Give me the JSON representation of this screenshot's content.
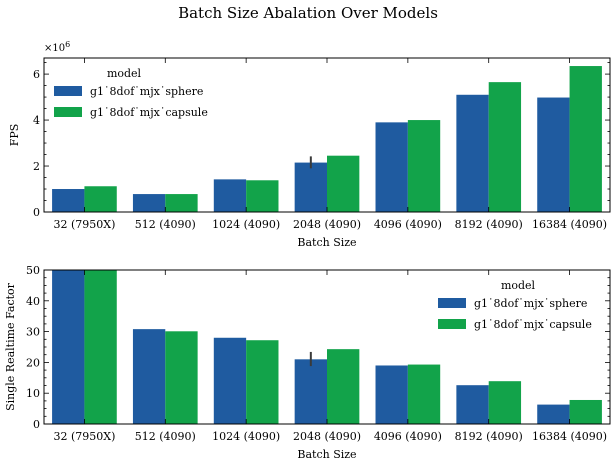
{
  "figure": {
    "title": "Batch Size Abalation Over Models"
  },
  "colors": {
    "sphere": "#1f5ba0",
    "capsule": "#12a34a",
    "errorbar": "#3a3a3a"
  },
  "chart_data": [
    {
      "type": "bar",
      "categories": [
        "32 (7950X)",
        "512 (4090)",
        "1024 (4090)",
        "2048 (4090)",
        "4096 (4090)",
        "8192 (4090)",
        "16384 (4090)"
      ],
      "series": [
        {
          "name": "g1˙8dof˙mjx˙sphere",
          "values": [
            1.0,
            0.78,
            1.42,
            2.15,
            3.9,
            5.1,
            4.98
          ]
        },
        {
          "name": "g1˙8dof˙mjx˙capsule",
          "values": [
            1.12,
            0.78,
            1.38,
            2.45,
            4.0,
            5.65,
            6.35
          ]
        }
      ],
      "error": [
        {
          "series": 0,
          "category": 3,
          "low": 1.9,
          "high": 2.42
        }
      ],
      "xlabel": "Batch Size",
      "ylabel": "FPS",
      "ylim": [
        0,
        6.7
      ],
      "yticks": [
        0,
        2,
        4,
        6
      ],
      "ytick_labels": [
        "0",
        "2",
        "4",
        "6"
      ],
      "multiplier": "×10",
      "multiplier_exp": "6",
      "legend_title": "model",
      "legend_position": "upper-left"
    },
    {
      "type": "bar",
      "categories": [
        "32 (7950X)",
        "512 (4090)",
        "1024 (4090)",
        "2048 (4090)",
        "4096 (4090)",
        "8192 (4090)",
        "16384 (4090)"
      ],
      "series": [
        {
          "name": "g1˙8dof˙mjx˙sphere",
          "values": [
            50,
            30.8,
            28.0,
            21.0,
            19.0,
            12.6,
            6.3
          ]
        },
        {
          "name": "g1˙8dof˙mjx˙capsule",
          "values": [
            50,
            30.1,
            27.2,
            24.3,
            19.3,
            13.9,
            7.8
          ]
        }
      ],
      "error": [
        {
          "series": 0,
          "category": 3,
          "low": 18.8,
          "high": 23.4
        }
      ],
      "xlabel": "Batch Size",
      "ylabel": "Single Realtime Factor",
      "ylim": [
        0,
        50
      ],
      "yticks": [
        0,
        10,
        20,
        30,
        40,
        50
      ],
      "ytick_labels": [
        "0",
        "10",
        "20",
        "30",
        "40",
        "50"
      ],
      "legend_title": "model",
      "legend_position": "upper-right"
    }
  ]
}
